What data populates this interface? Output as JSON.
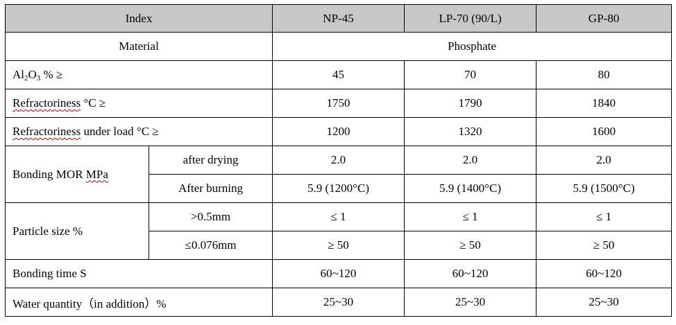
{
  "table": {
    "header": {
      "index": "Index",
      "np45": "NP-45",
      "lp70": "LP-70 (90/L)",
      "gp80": "GP-80"
    },
    "material": {
      "label": "Material",
      "value": "Phosphate"
    },
    "al2o3": {
      "label_prefix": "Al",
      "sub1": "2",
      "label_mid": "O",
      "sub2": "3",
      "label_suffix": " % ≥",
      "np45": "45",
      "lp70": "70",
      "gp80": "80"
    },
    "refractoriness": {
      "label_word": "Refractoriness",
      "label_rest": " °C ≥",
      "np45": "1750",
      "lp70": "1790",
      "gp80": "1840"
    },
    "refractoriness_load": {
      "label_word": "Refractoriness",
      "label_rest": " under load °C ≥",
      "np45": "1200",
      "lp70": "1320",
      "gp80": "1600"
    },
    "bonding_mor": {
      "label_prefix": "Bonding MOR ",
      "label_unit": "MPa",
      "drying": {
        "label": "after drying",
        "np45": "2.0",
        "lp70": "2.0",
        "gp80": "2.0"
      },
      "burning": {
        "label": "After burning",
        "np45": "5.9 (1200°C)",
        "lp70": "5.9 (1400°C)",
        "gp80": "5.9 (1500°C)"
      }
    },
    "particle_size": {
      "label": "Particle size %",
      "coarse": {
        "label": ">0.5mm",
        "np45": "≤ 1",
        "lp70": "≤ 1",
        "gp80": "≤ 1"
      },
      "fine": {
        "label": "≤0.076mm",
        "np45": "≥ 50",
        "lp70": "≥ 50",
        "gp80": "≥ 50"
      }
    },
    "bonding_time": {
      "label": "Bonding time S",
      "np45": "60~120",
      "lp70": "60~120",
      "gp80": "60~120"
    },
    "water": {
      "label": "Water quantity（in addition）%",
      "np45": "25~30",
      "lp70": "25~30",
      "gp80": "25~30"
    }
  }
}
